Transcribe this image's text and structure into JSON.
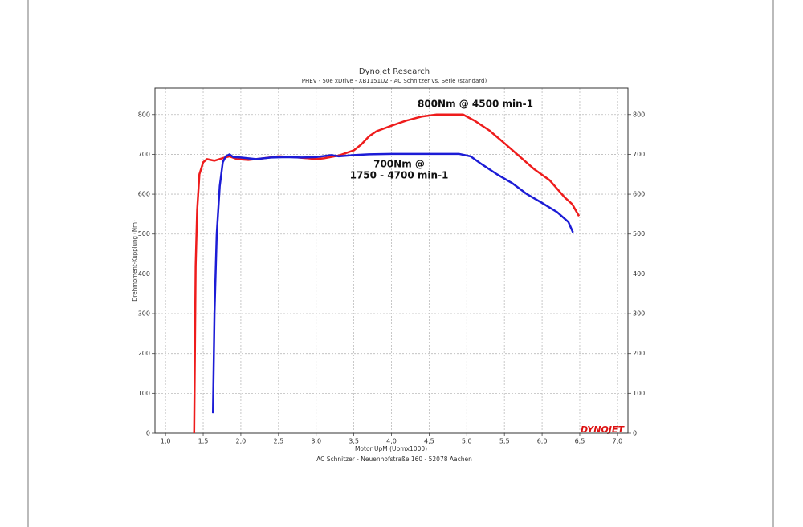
{
  "chart_data": {
    "type": "line",
    "title": "DynoJet Research",
    "subtitle": "PHEV - 50e xDrive - XB1151U2 - AC Schnitzer vs. Serie (standard)",
    "xlabel": "Motor UpM (Upmx1000)",
    "ylabel": "Drehmoment-Kupplung (Nm)",
    "footer": "AC Schnitzer - Neuenhofstraße 160 - 52078 Aachen",
    "logo": "DYNOJET",
    "annotations": [
      "800Nm @ 4500 min-1",
      "700Nm @",
      "1750 - 4700 min-1"
    ],
    "xlim": [
      0.86,
      7.14
    ],
    "ylim": [
      0,
      866
    ],
    "xticks": [
      {
        "value": 1.0,
        "label": "1,0"
      },
      {
        "value": 1.5,
        "label": "1,5"
      },
      {
        "value": 2.0,
        "label": "2,0"
      },
      {
        "value": 2.5,
        "label": "2,5"
      },
      {
        "value": 3.0,
        "label": "3,0"
      },
      {
        "value": 3.5,
        "label": "3,5"
      },
      {
        "value": 4.0,
        "label": "4,0"
      },
      {
        "value": 4.5,
        "label": "4,5"
      },
      {
        "value": 5.0,
        "label": "5,0"
      },
      {
        "value": 5.5,
        "label": "5,5"
      },
      {
        "value": 6.0,
        "label": "6,0"
      },
      {
        "value": 6.5,
        "label": "6,5"
      },
      {
        "value": 7.0,
        "label": "7,0"
      }
    ],
    "yticks": [
      0,
      100,
      200,
      300,
      400,
      500,
      600,
      700,
      800
    ],
    "grid": true,
    "series": [
      {
        "color": "#ee1c1c",
        "x": [
          1.38,
          1.39,
          1.4,
          1.42,
          1.45,
          1.5,
          1.55,
          1.65,
          1.75,
          1.85,
          1.95,
          2.1,
          2.3,
          2.5,
          2.7,
          2.9,
          3.0,
          3.1,
          3.3,
          3.5,
          3.6,
          3.7,
          3.8,
          4.0,
          4.2,
          4.4,
          4.6,
          4.8,
          4.95,
          5.1,
          5.3,
          5.5,
          5.7,
          5.9,
          6.1,
          6.3,
          6.4,
          6.49
        ],
        "values": [
          0,
          200,
          420,
          560,
          650,
          680,
          688,
          684,
          690,
          695,
          688,
          686,
          690,
          695,
          693,
          690,
          688,
          690,
          697,
          710,
          725,
          745,
          758,
          772,
          785,
          795,
          800,
          800,
          800,
          785,
          760,
          728,
          695,
          662,
          635,
          592,
          575,
          545
        ]
      },
      {
        "color": "#1c1cd6",
        "x": [
          1.63,
          1.65,
          1.68,
          1.72,
          1.76,
          1.8,
          1.85,
          1.9,
          2.0,
          2.2,
          2.4,
          2.6,
          2.8,
          3.0,
          3.2,
          3.3,
          3.5,
          3.7,
          4.0,
          4.5,
          4.9,
          5.05,
          5.2,
          5.4,
          5.6,
          5.8,
          6.0,
          6.2,
          6.35,
          6.41
        ],
        "values": [
          50,
          300,
          500,
          620,
          680,
          695,
          700,
          693,
          692,
          688,
          692,
          693,
          692,
          693,
          698,
          695,
          698,
          700,
          701,
          701,
          701,
          695,
          675,
          650,
          628,
          600,
          578,
          555,
          530,
          504
        ]
      }
    ]
  }
}
